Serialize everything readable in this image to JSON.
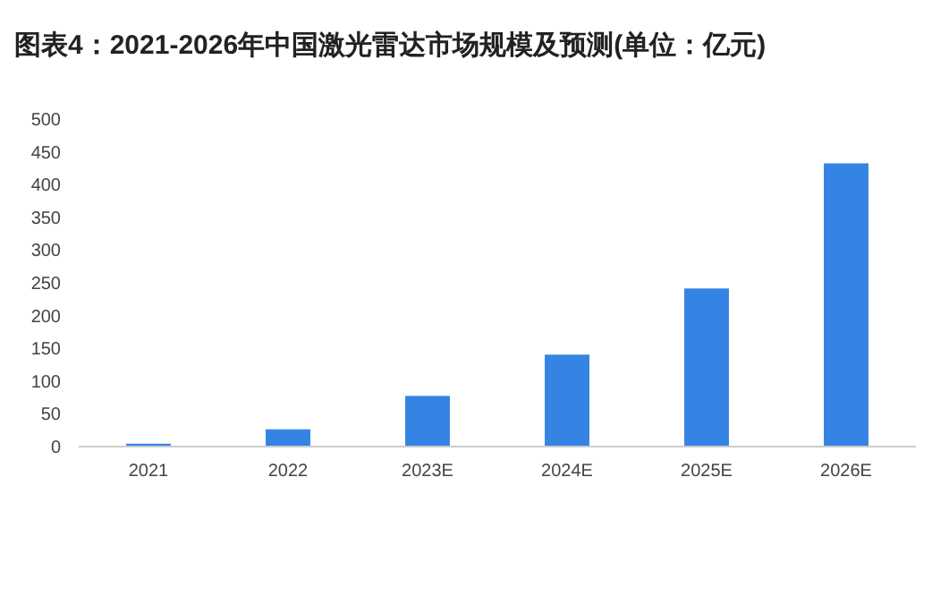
{
  "chart_data": {
    "type": "bar",
    "title": "图表4：2021-2026年中国激光雷达市场规模及预测(单位：亿元)",
    "categories": [
      "2021",
      "2022",
      "2023E",
      "2024E",
      "2025E",
      "2026E"
    ],
    "values": [
      3,
      25,
      76,
      139,
      240,
      431
    ],
    "color": "#3584e4",
    "ylim": [
      0,
      500
    ],
    "yticks": [
      0,
      50,
      100,
      150,
      200,
      250,
      300,
      350,
      400,
      450,
      500
    ],
    "grid": false
  }
}
